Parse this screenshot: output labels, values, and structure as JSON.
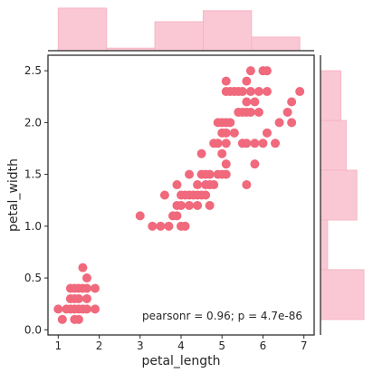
{
  "chart_data": {
    "type": "scatter",
    "title": "",
    "xlabel": "petal_length",
    "ylabel": "petal_width",
    "xlim": [
      0.75,
      7.25
    ],
    "ylim": [
      -0.05,
      2.65
    ],
    "xticks": [
      1,
      2,
      3,
      4,
      5,
      6,
      7
    ],
    "yticks": [
      0.0,
      0.5,
      1.0,
      1.5,
      2.0,
      2.5
    ],
    "grid": false,
    "annotation": "pearsonr = 0.96; p = 4.7e-86",
    "point_color": "#f0697c",
    "marginal_color": "#f7b6c6",
    "points": [
      [
        1.0,
        0.2
      ],
      [
        1.1,
        0.1
      ],
      [
        1.2,
        0.2
      ],
      [
        1.3,
        0.2
      ],
      [
        1.3,
        0.3
      ],
      [
        1.3,
        0.4
      ],
      [
        1.4,
        0.1
      ],
      [
        1.4,
        0.2
      ],
      [
        1.4,
        0.3
      ],
      [
        1.4,
        0.4
      ],
      [
        1.5,
        0.1
      ],
      [
        1.5,
        0.2
      ],
      [
        1.5,
        0.3
      ],
      [
        1.5,
        0.4
      ],
      [
        1.6,
        0.2
      ],
      [
        1.6,
        0.4
      ],
      [
        1.6,
        0.6
      ],
      [
        1.7,
        0.2
      ],
      [
        1.7,
        0.3
      ],
      [
        1.7,
        0.4
      ],
      [
        1.7,
        0.5
      ],
      [
        1.9,
        0.2
      ],
      [
        1.9,
        0.4
      ],
      [
        3.0,
        1.1
      ],
      [
        3.3,
        1.0
      ],
      [
        3.5,
        1.0
      ],
      [
        3.6,
        1.3
      ],
      [
        3.7,
        1.0
      ],
      [
        3.8,
        1.1
      ],
      [
        3.9,
        1.1
      ],
      [
        3.9,
        1.2
      ],
      [
        3.9,
        1.4
      ],
      [
        4.0,
        1.0
      ],
      [
        4.0,
        1.2
      ],
      [
        4.0,
        1.3
      ],
      [
        4.1,
        1.0
      ],
      [
        4.1,
        1.3
      ],
      [
        4.2,
        1.2
      ],
      [
        4.2,
        1.3
      ],
      [
        4.2,
        1.5
      ],
      [
        4.3,
        1.3
      ],
      [
        4.4,
        1.2
      ],
      [
        4.4,
        1.3
      ],
      [
        4.4,
        1.4
      ],
      [
        4.5,
        1.3
      ],
      [
        4.5,
        1.5
      ],
      [
        4.5,
        1.7
      ],
      [
        4.6,
        1.3
      ],
      [
        4.6,
        1.4
      ],
      [
        4.6,
        1.5
      ],
      [
        4.7,
        1.2
      ],
      [
        4.7,
        1.4
      ],
      [
        4.7,
        1.5
      ],
      [
        4.8,
        1.4
      ],
      [
        4.8,
        1.8
      ],
      [
        4.9,
        1.5
      ],
      [
        4.9,
        1.8
      ],
      [
        4.9,
        2.0
      ],
      [
        5.0,
        1.5
      ],
      [
        5.0,
        1.7
      ],
      [
        5.0,
        1.9
      ],
      [
        5.0,
        2.0
      ],
      [
        5.1,
        1.5
      ],
      [
        5.1,
        1.6
      ],
      [
        5.1,
        1.8
      ],
      [
        5.1,
        1.9
      ],
      [
        5.1,
        2.0
      ],
      [
        5.1,
        2.3
      ],
      [
        5.1,
        2.4
      ],
      [
        5.2,
        2.0
      ],
      [
        5.2,
        2.3
      ],
      [
        5.3,
        1.9
      ],
      [
        5.3,
        2.3
      ],
      [
        5.4,
        2.1
      ],
      [
        5.4,
        2.3
      ],
      [
        5.5,
        1.8
      ],
      [
        5.5,
        2.1
      ],
      [
        5.5,
        2.3
      ],
      [
        5.6,
        1.4
      ],
      [
        5.6,
        1.8
      ],
      [
        5.6,
        2.1
      ],
      [
        5.6,
        2.2
      ],
      [
        5.6,
        2.4
      ],
      [
        5.7,
        2.1
      ],
      [
        5.7,
        2.3
      ],
      [
        5.7,
        2.5
      ],
      [
        5.8,
        1.6
      ],
      [
        5.8,
        1.8
      ],
      [
        5.8,
        2.2
      ],
      [
        5.9,
        2.1
      ],
      [
        5.9,
        2.3
      ],
      [
        6.0,
        1.8
      ],
      [
        6.0,
        2.5
      ],
      [
        6.1,
        1.9
      ],
      [
        6.1,
        2.3
      ],
      [
        6.1,
        2.5
      ],
      [
        6.3,
        1.8
      ],
      [
        6.4,
        2.0
      ],
      [
        6.6,
        2.1
      ],
      [
        6.7,
        2.0
      ],
      [
        6.7,
        2.2
      ],
      [
        6.9,
        2.3
      ]
    ],
    "x_hist": {
      "bin_edges": [
        1.0,
        2.18,
        3.36,
        4.54,
        5.72,
        6.9
      ],
      "counts": [
        50,
        3,
        34,
        47,
        16
      ]
    },
    "y_hist": {
      "bin_edges": [
        0.1,
        0.58,
        1.06,
        1.54,
        2.02,
        2.5
      ],
      "counts": [
        49,
        8,
        41,
        29,
        23
      ]
    }
  }
}
